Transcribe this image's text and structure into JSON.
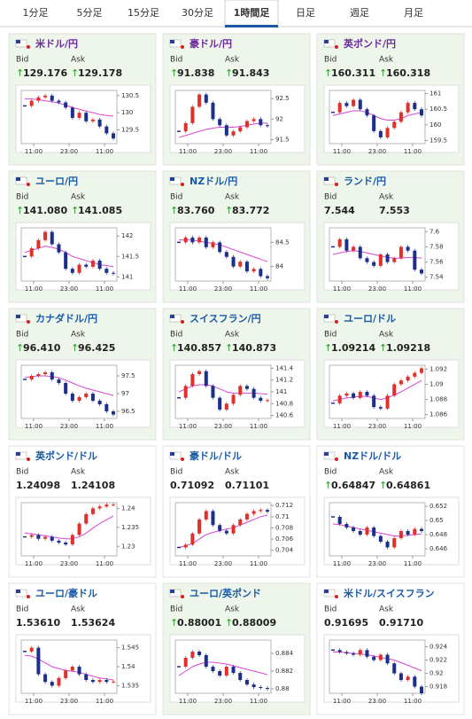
{
  "tabs": {
    "items": [
      "1分足",
      "5分足",
      "15分足",
      "30分足",
      "1時間足",
      "日足",
      "週足",
      "月足"
    ],
    "active": 4
  },
  "labels": {
    "bid": "Bid",
    "ask": "Ask"
  },
  "time_labels": [
    "11:00",
    "23:00",
    "11:00"
  ],
  "colors": {
    "up": "#e0302c",
    "down": "#1c2f8a",
    "ma": "#d946d6",
    "visited": "#6a2a9a",
    "link": "#1a5aa6",
    "arrow": "#2a9a2a",
    "highlight": "#eef5ea"
  },
  "cards": [
    {
      "pair": "米ドル/円",
      "visited": true,
      "highlight": true,
      "arrow": "↑",
      "bid": "129.176",
      "ask": "129.178",
      "ylim": [
        129.1,
        130.65
      ],
      "yticks": [
        130.5,
        130,
        129.5
      ],
      "closes": [
        130.2,
        130.35,
        130.45,
        130.5,
        130.35,
        130.3,
        130.15,
        129.85,
        130.0,
        129.75,
        129.8,
        129.6,
        129.4,
        129.25
      ],
      "ma": [
        130.4,
        130.4,
        130.38,
        130.35,
        130.32,
        130.28,
        130.22,
        130.15,
        130.1,
        130.05,
        130.0,
        129.95,
        129.92,
        129.9
      ]
    },
    {
      "pair": "豪ドル/円",
      "visited": true,
      "highlight": true,
      "arrow": "↑",
      "bid": "91.838",
      "ask": "91.843",
      "ylim": [
        91.4,
        92.7
      ],
      "yticks": [
        92.5,
        92,
        91.5
      ],
      "closes": [
        91.7,
        91.9,
        92.3,
        92.6,
        92.4,
        92.0,
        91.85,
        91.6,
        91.7,
        91.8,
        91.95,
        92.0,
        91.85,
        91.83
      ],
      "ma": [
        91.55,
        91.6,
        91.65,
        91.7,
        91.75,
        91.78,
        91.8,
        91.8,
        91.8,
        91.82,
        91.85,
        91.88,
        91.9,
        91.9
      ]
    },
    {
      "pair": "英ポンド/円",
      "visited": true,
      "highlight": true,
      "arrow": "↑",
      "bid": "160.311",
      "ask": "160.318",
      "ylim": [
        159.4,
        161.1
      ],
      "yticks": [
        161,
        160.5,
        160,
        159.5
      ],
      "closes": [
        160.4,
        160.7,
        160.6,
        160.8,
        160.5,
        160.3,
        159.8,
        159.6,
        159.9,
        160.1,
        160.4,
        160.7,
        160.5,
        160.3
      ],
      "ma": [
        160.3,
        160.35,
        160.4,
        160.45,
        160.45,
        160.4,
        160.3,
        160.2,
        160.15,
        160.15,
        160.2,
        160.3,
        160.35,
        160.4
      ]
    },
    {
      "pair": "ユーロ/円",
      "visited": false,
      "highlight": true,
      "arrow": "↑",
      "bid": "141.080",
      "ask": "141.085",
      "ylim": [
        140.9,
        142.2
      ],
      "yticks": [
        142,
        141.5,
        141
      ],
      "closes": [
        141.5,
        141.7,
        141.9,
        142.1,
        141.8,
        141.6,
        141.2,
        141.1,
        141.3,
        141.25,
        141.4,
        141.2,
        141.1,
        141.08
      ],
      "ma": [
        141.6,
        141.65,
        141.7,
        141.75,
        141.72,
        141.68,
        141.6,
        141.5,
        141.45,
        141.4,
        141.35,
        141.3,
        141.28,
        141.25
      ]
    },
    {
      "pair": "NZドル/円",
      "visited": false,
      "highlight": true,
      "arrow": "↑",
      "bid": "83.760",
      "ask": "83.772",
      "ylim": [
        83.7,
        84.8
      ],
      "yticks": [
        84.5,
        84
      ],
      "closes": [
        84.5,
        84.6,
        84.5,
        84.6,
        84.4,
        84.5,
        84.3,
        84.2,
        84.0,
        84.1,
        83.9,
        83.95,
        83.8,
        83.76
      ],
      "ma": [
        84.55,
        84.55,
        84.55,
        84.52,
        84.5,
        84.48,
        84.45,
        84.4,
        84.35,
        84.3,
        84.25,
        84.2,
        84.15,
        84.1
      ]
    },
    {
      "pair": "ランド/円",
      "visited": false,
      "highlight": true,
      "bid": "7.544",
      "ask": "7.553",
      "ylim": [
        7.535,
        7.605
      ],
      "yticks": [
        7.6,
        7.58,
        7.56,
        7.54
      ],
      "closes": [
        7.58,
        7.59,
        7.575,
        7.58,
        7.565,
        7.56,
        7.555,
        7.57,
        7.56,
        7.565,
        7.58,
        7.575,
        7.55,
        7.545
      ],
      "ma": [
        7.57,
        7.572,
        7.574,
        7.575,
        7.574,
        7.572,
        7.57,
        7.568,
        7.566,
        7.565,
        7.565,
        7.566,
        7.566,
        7.565
      ]
    },
    {
      "pair": "カナダドル/円",
      "visited": false,
      "highlight": true,
      "arrow": "↑",
      "bid": "96.410",
      "ask": "96.425",
      "ylim": [
        96.3,
        97.8
      ],
      "yticks": [
        97.5,
        97,
        96.5
      ],
      "closes": [
        97.4,
        97.5,
        97.55,
        97.6,
        97.4,
        97.3,
        97.0,
        96.8,
        96.9,
        97.0,
        96.8,
        96.7,
        96.5,
        96.41
      ],
      "ma": [
        97.45,
        97.48,
        97.5,
        97.5,
        97.48,
        97.45,
        97.38,
        97.3,
        97.22,
        97.15,
        97.1,
        97.05,
        97.0,
        96.95
      ]
    },
    {
      "pair": "スイスフラン/円",
      "visited": false,
      "highlight": true,
      "arrow": "↑",
      "bid": "140.857",
      "ask": "140.873",
      "ylim": [
        140.55,
        141.45
      ],
      "yticks": [
        141.4,
        141.2,
        141,
        140.8,
        140.6
      ],
      "closes": [
        140.9,
        141.1,
        141.3,
        141.35,
        141.1,
        140.9,
        140.7,
        140.8,
        140.95,
        141.1,
        141.05,
        140.9,
        140.85,
        140.86
      ],
      "ma": [
        141.0,
        141.05,
        141.1,
        141.12,
        141.12,
        141.1,
        141.05,
        141.0,
        140.98,
        140.98,
        140.98,
        140.98,
        140.97,
        140.96
      ]
    },
    {
      "pair": "ユーロ/ドル",
      "visited": false,
      "highlight": true,
      "arrow": "↑",
      "bid": "1.09214",
      "ask": "1.09218",
      "ylim": [
        1.0855,
        1.0925
      ],
      "yticks": [
        1.092,
        1.09,
        1.088,
        1.086
      ],
      "closes": [
        1.0875,
        1.0885,
        1.0888,
        1.0882,
        1.089,
        1.0885,
        1.087,
        1.0868,
        1.0885,
        1.09,
        1.0905,
        1.091,
        1.0915,
        1.0921
      ],
      "ma": [
        1.0878,
        1.088,
        1.0882,
        1.0883,
        1.0884,
        1.0884,
        1.0882,
        1.088,
        1.0882,
        1.0886,
        1.089,
        1.0895,
        1.09,
        1.0905
      ]
    },
    {
      "pair": "英ポンド/ドル",
      "visited": false,
      "highlight": false,
      "bid": "1.24098",
      "ask": "1.24108",
      "ylim": [
        1.2275,
        1.2415
      ],
      "yticks": [
        1.24,
        1.235,
        1.23
      ],
      "closes": [
        1.2325,
        1.233,
        1.232,
        1.2325,
        1.2315,
        1.231,
        1.2305,
        1.233,
        1.236,
        1.2385,
        1.24,
        1.2405,
        1.241,
        1.241
      ],
      "ma": [
        1.2335,
        1.2333,
        1.233,
        1.2328,
        1.2325,
        1.2322,
        1.232,
        1.232,
        1.2325,
        1.2335,
        1.2348,
        1.236,
        1.237,
        1.238
      ]
    },
    {
      "pair": "豪ドル/ドル",
      "visited": false,
      "highlight": false,
      "bid": "0.71092",
      "ask": "0.71101",
      "ylim": [
        0.703,
        0.7125
      ],
      "yticks": [
        0.712,
        0.71,
        0.708,
        0.706,
        0.704
      ],
      "closes": [
        0.7045,
        0.705,
        0.707,
        0.7095,
        0.711,
        0.7085,
        0.7075,
        0.707,
        0.7085,
        0.7095,
        0.7105,
        0.711,
        0.7112,
        0.7109
      ],
      "ma": [
        0.7045,
        0.7048,
        0.7052,
        0.706,
        0.7068,
        0.7072,
        0.7075,
        0.7078,
        0.708,
        0.7085,
        0.709,
        0.7095,
        0.71,
        0.7103
      ]
    },
    {
      "pair": "NZドル/ドル",
      "visited": false,
      "highlight": false,
      "arrow": "↑",
      "bid": "0.64847",
      "ask": "0.64861",
      "ylim": [
        0.645,
        0.6525
      ],
      "yticks": [
        0.652,
        0.65,
        0.648,
        0.646
      ],
      "closes": [
        0.6505,
        0.6495,
        0.649,
        0.6485,
        0.648,
        0.649,
        0.6478,
        0.647,
        0.6462,
        0.6475,
        0.6485,
        0.648,
        0.6488,
        0.6485
      ],
      "ma": [
        0.6495,
        0.6494,
        0.6492,
        0.649,
        0.6488,
        0.6486,
        0.6484,
        0.6482,
        0.648,
        0.6478,
        0.6478,
        0.6479,
        0.648,
        0.6481
      ]
    },
    {
      "pair": "ユーロ/豪ドル",
      "visited": false,
      "highlight": false,
      "bid": "1.53610",
      "ask": "1.53624",
      "ylim": [
        1.533,
        1.547
      ],
      "yticks": [
        1.545,
        1.54,
        1.535
      ],
      "closes": [
        1.544,
        1.545,
        1.538,
        1.536,
        1.535,
        1.537,
        1.539,
        1.54,
        1.538,
        1.5365,
        1.536,
        1.5365,
        1.536,
        1.5361
      ],
      "ma": [
        1.543,
        1.5428,
        1.542,
        1.541,
        1.54,
        1.5395,
        1.539,
        1.5388,
        1.5385,
        1.538,
        1.5375,
        1.537,
        1.5368,
        1.5365
      ]
    },
    {
      "pair": "ユーロ/英ポンド",
      "visited": false,
      "highlight": true,
      "arrow": "↑",
      "bid": "0.88001",
      "ask": "0.88009",
      "ylim": [
        0.8795,
        0.8855
      ],
      "yticks": [
        0.884,
        0.882,
        0.88
      ],
      "closes": [
        0.8825,
        0.8835,
        0.8842,
        0.8838,
        0.8825,
        0.882,
        0.8815,
        0.8825,
        0.8818,
        0.881,
        0.8805,
        0.8802,
        0.8801,
        0.88
      ],
      "ma": [
        0.8815,
        0.882,
        0.8825,
        0.8828,
        0.883,
        0.883,
        0.8829,
        0.8828,
        0.8826,
        0.8824,
        0.8822,
        0.882,
        0.8818,
        0.8816
      ]
    },
    {
      "pair": "米ドル/スイスフラン",
      "visited": false,
      "highlight": false,
      "bid": "0.91695",
      "ask": "0.91710",
      "ylim": [
        0.917,
        0.925
      ],
      "yticks": [
        0.924,
        0.922,
        0.92,
        0.918
      ],
      "closes": [
        0.9235,
        0.9232,
        0.923,
        0.9228,
        0.9235,
        0.9225,
        0.922,
        0.9228,
        0.9215,
        0.92,
        0.919,
        0.9195,
        0.918,
        0.917
      ],
      "ma": [
        0.9232,
        0.9232,
        0.9231,
        0.923,
        0.9229,
        0.9228,
        0.9226,
        0.9224,
        0.9222,
        0.922,
        0.9216,
        0.9212,
        0.9208,
        0.9204
      ]
    }
  ]
}
